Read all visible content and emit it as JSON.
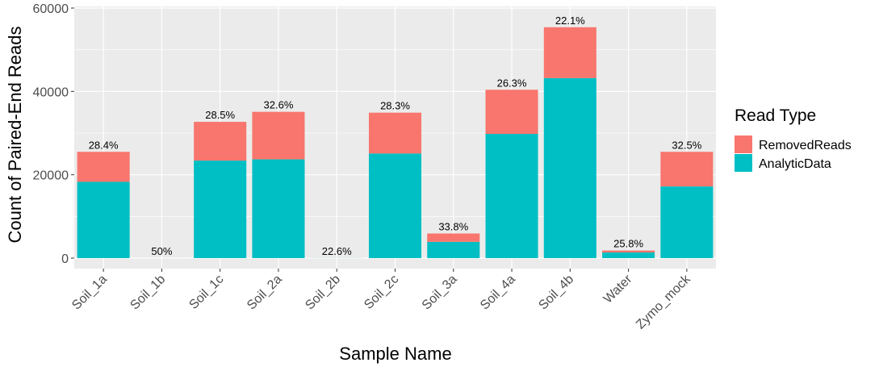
{
  "chart_data": {
    "type": "bar",
    "stacked": true,
    "xlabel": "Sample Name",
    "ylabel": "Count of Paired-End Reads",
    "ylim": [
      0,
      60000
    ],
    "y_ticks": [
      0,
      20000,
      40000,
      60000
    ],
    "y_tick_labels": [
      "0",
      "20000",
      "40000",
      "60000"
    ],
    "grid": true,
    "categories": [
      "Soil_1a",
      "Soil_1b",
      "Soil_1c",
      "Soil_2a",
      "Soil_2b",
      "Soil_2c",
      "Soil_3a",
      "Soil_4a",
      "Soil_4b",
      "Water",
      "Zymo_mock"
    ],
    "series": [
      {
        "name": "AnalyticData",
        "color": "#00BFC4",
        "values": [
          18300,
          2,
          23400,
          23700,
          20,
          25100,
          3900,
          29800,
          43200,
          1350,
          17200
        ]
      },
      {
        "name": "RemovedReads",
        "color": "#F8766D",
        "values": [
          7200,
          2,
          9300,
          11400,
          6,
          9800,
          2000,
          10600,
          12200,
          470,
          8300
        ]
      }
    ],
    "bar_labels": [
      "28.4%",
      "50%",
      "28.5%",
      "32.6%",
      "22.6%",
      "28.3%",
      "33.8%",
      "26.3%",
      "22.1%",
      "25.8%",
      "32.5%"
    ],
    "legend": {
      "title": "Read Type",
      "position": "right",
      "items": [
        {
          "label": "RemovedReads",
          "color": "#F8766D"
        },
        {
          "label": "AnalyticData",
          "color": "#00BFC4"
        }
      ]
    },
    "panel_background": "#EBEBEB",
    "grid_color": "#FFFFFF"
  }
}
